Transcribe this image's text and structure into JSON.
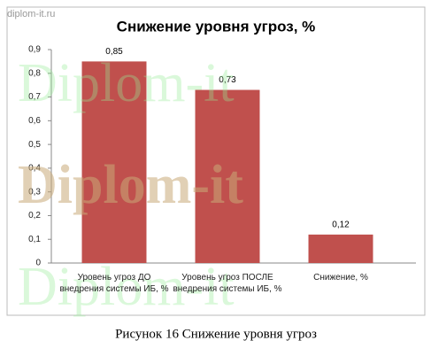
{
  "site": "diplom-it.ru",
  "watermarks": [
    "Diplom-it",
    "Diplom-it",
    "Diplom-it"
  ],
  "caption": "Рисунок 16 Снижение уровня угроз",
  "chart_data": {
    "type": "bar",
    "title": "Снижение уровня угроз, %",
    "categories": [
      "Уровень угроз ДО внедрения системы ИБ, %",
      "Уровень угроз ПОСЛЕ внедрения системы ИБ, %",
      "Снижение, %"
    ],
    "values": [
      0.85,
      0.73,
      0.12
    ],
    "value_labels": [
      "0,85",
      "0,73",
      "0,12"
    ],
    "color": "#c0504d",
    "ylim": [
      0,
      0.9
    ],
    "yticks": [
      0,
      {
        "value": 0.1,
        "label": "0,1"
      },
      {
        "value": 0.2,
        "label": "0,2"
      },
      {
        "value": 0.3,
        "label": "0,3"
      },
      {
        "value": 0.4,
        "label": "0,4"
      },
      {
        "value": 0.5,
        "label": "0,5"
      },
      {
        "value": 0.6,
        "label": "0,6"
      },
      {
        "value": 0.7,
        "label": "0,7"
      },
      {
        "value": 0.8,
        "label": "0,8"
      },
      {
        "value": 0.9,
        "label": "0,9"
      }
    ],
    "grid": false
  }
}
